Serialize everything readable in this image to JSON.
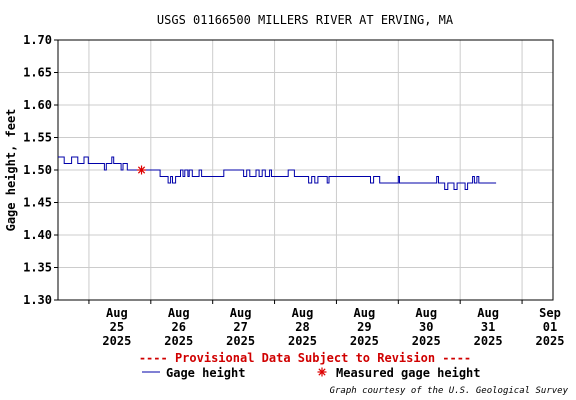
{
  "chart_data": {
    "type": "line",
    "title": "USGS 01166500 MILLERS RIVER AT ERVING, MA",
    "ylabel": "Gage height, feet",
    "xlabel": "",
    "ylim": [
      1.3,
      1.7
    ],
    "y_ticks": [
      "1.70",
      "1.65",
      "1.60",
      "1.55",
      "1.50",
      "1.45",
      "1.40",
      "1.35",
      "1.30"
    ],
    "x_range_days": [
      24.5,
      32.5
    ],
    "x_ticks": [
      {
        "day": 25,
        "month": "Aug",
        "date": "25",
        "year": "2025"
      },
      {
        "day": 26,
        "month": "Aug",
        "date": "26",
        "year": "2025"
      },
      {
        "day": 27,
        "month": "Aug",
        "date": "27",
        "year": "2025"
      },
      {
        "day": 28,
        "month": "Aug",
        "date": "28",
        "year": "2025"
      },
      {
        "day": 29,
        "month": "Aug",
        "date": "29",
        "year": "2025"
      },
      {
        "day": 30,
        "month": "Aug",
        "date": "30",
        "year": "2025"
      },
      {
        "day": 31,
        "month": "Aug",
        "date": "31",
        "year": "2025"
      },
      {
        "day": 32,
        "month": "Sep",
        "date": "01",
        "year": "2025"
      }
    ],
    "grid": true,
    "series": [
      {
        "name": "Gage height",
        "color": "#0000aa",
        "points": [
          [
            24.5,
            1.52
          ],
          [
            24.58,
            1.52
          ],
          [
            24.6,
            1.51
          ],
          [
            24.7,
            1.51
          ],
          [
            24.72,
            1.52
          ],
          [
            24.8,
            1.52
          ],
          [
            24.82,
            1.51
          ],
          [
            24.9,
            1.51
          ],
          [
            24.92,
            1.52
          ],
          [
            24.97,
            1.52
          ],
          [
            24.99,
            1.51
          ],
          [
            25.2,
            1.51
          ],
          [
            25.25,
            1.5
          ],
          [
            25.28,
            1.51
          ],
          [
            25.35,
            1.51
          ],
          [
            25.37,
            1.52
          ],
          [
            25.4,
            1.51
          ],
          [
            25.5,
            1.51
          ],
          [
            25.52,
            1.5
          ],
          [
            25.55,
            1.51
          ],
          [
            25.6,
            1.51
          ],
          [
            25.62,
            1.5
          ],
          [
            25.7,
            1.5
          ],
          [
            25.95,
            1.5
          ],
          [
            26.1,
            1.5
          ],
          [
            26.15,
            1.49
          ],
          [
            26.25,
            1.49
          ],
          [
            26.28,
            1.48
          ],
          [
            26.32,
            1.49
          ],
          [
            26.35,
            1.48
          ],
          [
            26.4,
            1.49
          ],
          [
            26.45,
            1.49
          ],
          [
            26.48,
            1.5
          ],
          [
            26.52,
            1.49
          ],
          [
            26.55,
            1.5
          ],
          [
            26.6,
            1.49
          ],
          [
            26.62,
            1.5
          ],
          [
            26.67,
            1.49
          ],
          [
            26.75,
            1.49
          ],
          [
            26.78,
            1.5
          ],
          [
            26.82,
            1.49
          ],
          [
            27.15,
            1.49
          ],
          [
            27.18,
            1.5
          ],
          [
            27.45,
            1.5
          ],
          [
            27.5,
            1.49
          ],
          [
            27.55,
            1.5
          ],
          [
            27.6,
            1.49
          ],
          [
            27.65,
            1.49
          ],
          [
            27.7,
            1.5
          ],
          [
            27.75,
            1.49
          ],
          [
            27.8,
            1.5
          ],
          [
            27.85,
            1.49
          ],
          [
            27.9,
            1.49
          ],
          [
            27.92,
            1.5
          ],
          [
            27.95,
            1.49
          ],
          [
            28.2,
            1.49
          ],
          [
            28.22,
            1.5
          ],
          [
            28.3,
            1.5
          ],
          [
            28.32,
            1.49
          ],
          [
            28.5,
            1.49
          ],
          [
            28.55,
            1.48
          ],
          [
            28.6,
            1.49
          ],
          [
            28.65,
            1.48
          ],
          [
            28.7,
            1.49
          ],
          [
            28.8,
            1.49
          ],
          [
            28.85,
            1.48
          ],
          [
            28.88,
            1.49
          ],
          [
            29.5,
            1.49
          ],
          [
            29.55,
            1.48
          ],
          [
            29.6,
            1.49
          ],
          [
            29.65,
            1.49
          ],
          [
            29.7,
            1.48
          ],
          [
            29.95,
            1.48
          ],
          [
            30.0,
            1.49
          ],
          [
            30.02,
            1.48
          ],
          [
            30.6,
            1.48
          ],
          [
            30.62,
            1.49
          ],
          [
            30.65,
            1.48
          ],
          [
            30.7,
            1.48
          ],
          [
            30.75,
            1.47
          ],
          [
            30.8,
            1.48
          ],
          [
            30.88,
            1.48
          ],
          [
            30.9,
            1.47
          ],
          [
            30.95,
            1.48
          ],
          [
            31.05,
            1.48
          ],
          [
            31.08,
            1.47
          ],
          [
            31.12,
            1.48
          ],
          [
            31.18,
            1.48
          ],
          [
            31.2,
            1.49
          ],
          [
            31.23,
            1.48
          ],
          [
            31.25,
            1.48
          ],
          [
            31.27,
            1.49
          ],
          [
            31.3,
            1.48
          ],
          [
            31.58,
            1.48
          ]
        ]
      }
    ],
    "measurements": [
      {
        "name": "Measured gage height",
        "day": 25.85,
        "value": 1.5,
        "color": "#dd0000"
      }
    ],
    "provisional_note": "---- Provisional Data Subject to Revision ----",
    "legend": {
      "line_label": "Gage height",
      "marker_label": "Measured gage height"
    },
    "courtesy": "Graph courtesy of the U.S. Geological Survey",
    "colors": {
      "line": "#0000aa",
      "marker": "#dd0000",
      "grid": "#cccccc",
      "provisional": "#d00000"
    }
  }
}
